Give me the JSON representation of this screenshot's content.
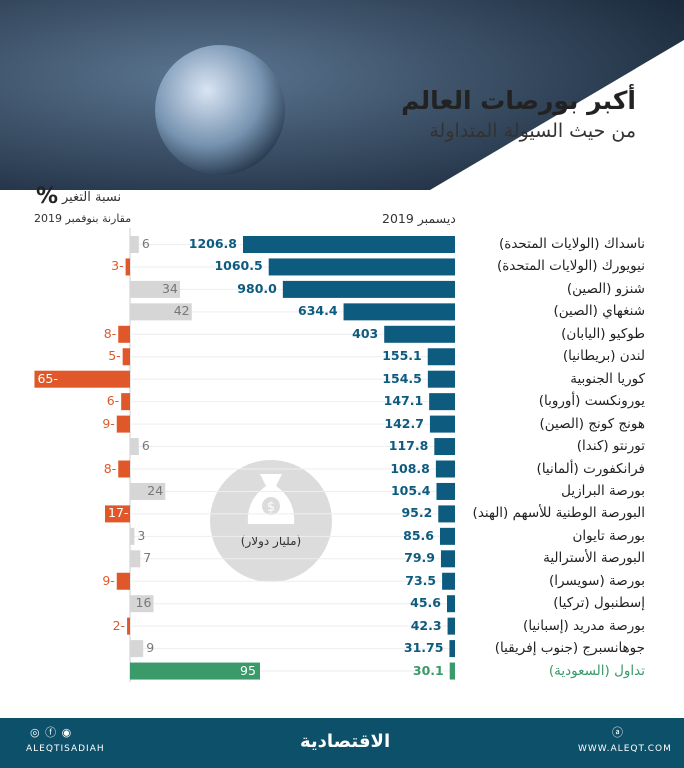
{
  "header": {
    "title": "أكبر بورصات العالم",
    "subtitle": "من حيث السيولة المتداولة",
    "pct_symbol": "%",
    "pct_title": "نسبة التغير",
    "pct_subtitle": "مقارنة بنوفمبر 2019",
    "value_title": "ديسمبر 2019",
    "unit_label": "(مليار دولار)"
  },
  "chart_data": {
    "type": "bar",
    "orientation": "horizontal",
    "categories": [
      "ناسداك (الولايات المتحدة)",
      "نيويورك (الولايات المتحدة)",
      "شنزو (الصين)",
      "شنغهاي (الصين)",
      "طوكيو (اليابان)",
      "لندن (بريطانيا)",
      "كوريا الجنوبية",
      "يورونكست (أوروبا)",
      "هونج كونج (الصين)",
      "تورنتو (كندا)",
      "فرانكفورت (ألمانيا)",
      "بورصة البرازيل",
      "البورصة الوطنية للأسهم (الهند)",
      "بورصة تايوان",
      "البورصة الأسترالية",
      "بورصة (سويسرا)",
      "إسطنبول (تركيا)",
      "بورصة مدريد (إسبانيا)",
      "جوهانسبرج (جنوب إفريقيا)",
      "تداول (السعودية)"
    ],
    "series": [
      {
        "name": "ديسمبر 2019",
        "values": [
          1206.8,
          1060.5,
          980.0,
          634.4,
          403,
          155.1,
          154.5,
          147.1,
          142.7,
          117.8,
          108.8,
          105.4,
          95.2,
          85.6,
          79.9,
          73.5,
          45.6,
          42.3,
          31.75,
          30.1
        ],
        "labels": [
          "1206.8",
          "1060.5",
          "980.0",
          "634.4",
          "403",
          "155.1",
          "154.5",
          "147.1",
          "142.7",
          "117.8",
          "108.8",
          "105.4",
          "95.2",
          "85.6",
          "79.9",
          "73.5",
          "45.6",
          "42.3",
          "31.75",
          "30.1"
        ]
      },
      {
        "name": "نسبة التغير",
        "values": [
          6,
          -3,
          34,
          42,
          -8,
          -5,
          -65,
          -6,
          -9,
          6,
          -8,
          24,
          -17,
          3,
          7,
          -9,
          16,
          -2,
          9,
          95
        ],
        "labels": [
          "6",
          "3-",
          "34",
          "42",
          "8-",
          "5-",
          "65-",
          "6-",
          "9-",
          "6",
          "8-",
          "24",
          "17-",
          "3",
          "7",
          "9-",
          "16",
          "2-",
          "9",
          "95"
        ]
      }
    ],
    "unit": "(مليار دولار)"
  },
  "colors": {
    "value_bar": "#0e5b80",
    "positive": "#d6d6d6",
    "negative": "#e0582a",
    "highlight": "#3a9a6a",
    "footer": "#0d5069"
  },
  "footer": {
    "social": "ALEQTISADIAH",
    "logo": "الاقتصادية",
    "site": "WWW.ALEQT.COM"
  }
}
